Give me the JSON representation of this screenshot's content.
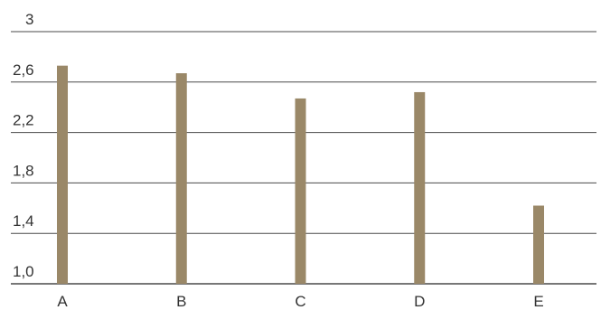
{
  "chart_data": {
    "type": "bar",
    "categories": [
      "A",
      "B",
      "C",
      "D",
      "E"
    ],
    "values": [
      2.73,
      2.67,
      2.47,
      2.52,
      1.62
    ],
    "yticks": [
      "1,0",
      "1,4",
      "1,8",
      "2,2",
      "2,6",
      "3"
    ],
    "ytick_values": [
      1.0,
      1.4,
      1.8,
      2.2,
      2.6,
      3.0
    ],
    "ylim": [
      1.0,
      3.0
    ],
    "grid": true,
    "colors": {
      "bar": "#9a8868",
      "grid": "#4a4a4a",
      "text": "#333333"
    }
  }
}
